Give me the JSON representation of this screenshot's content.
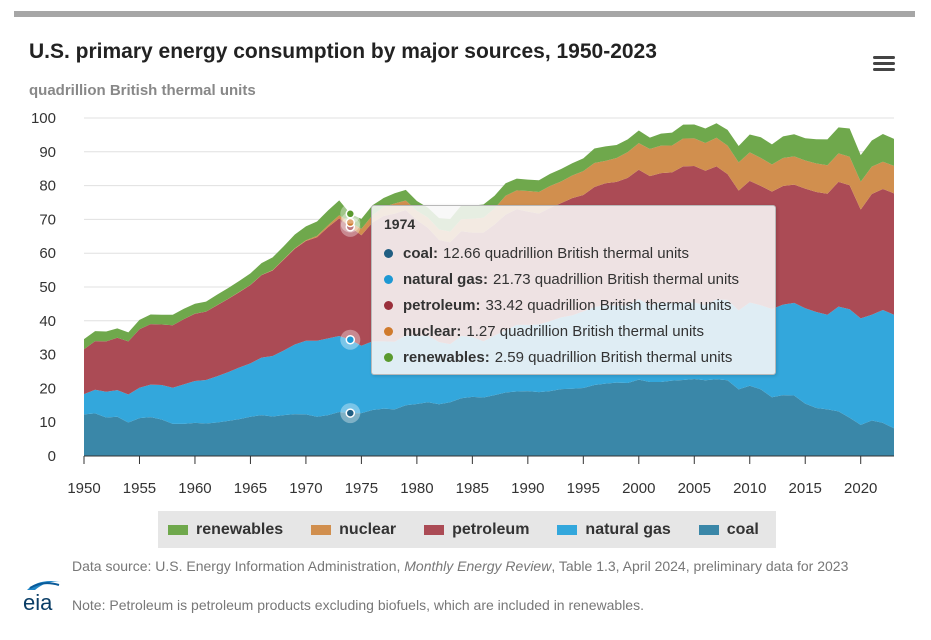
{
  "header": {
    "title": "U.S. primary energy consumption by major sources, 1950-2023",
    "subtitle": "quadrillion British thermal units"
  },
  "colors": {
    "coal": "#3a87a8",
    "natural_gas": "#33a7dc",
    "petroleum": "#ab4b55",
    "nuclear": "#d18f4e",
    "renewables": "#6fa84c",
    "tt_coal": "#205e82",
    "tt_natural_gas": "#1d98d3",
    "tt_petroleum": "#9a2f3b",
    "tt_nuclear": "#d07a2c",
    "tt_renewables": "#5a9a2e"
  },
  "chart_data": {
    "type": "area",
    "stacked": true,
    "xlim": [
      1950,
      2023
    ],
    "ylim": [
      0,
      100
    ],
    "x_ticks": [
      "1950",
      "1955",
      "1960",
      "1965",
      "1970",
      "1975",
      "1980",
      "1985",
      "1990",
      "1995",
      "2000",
      "2005",
      "2010",
      "2015",
      "2020"
    ],
    "y_ticks": [
      "0",
      "10",
      "20",
      "30",
      "40",
      "50",
      "60",
      "70",
      "80",
      "90",
      "100"
    ],
    "grid": "horizontal",
    "x": [
      1950,
      1951,
      1952,
      1953,
      1954,
      1955,
      1956,
      1957,
      1958,
      1959,
      1960,
      1961,
      1962,
      1963,
      1964,
      1965,
      1966,
      1967,
      1968,
      1969,
      1970,
      1971,
      1972,
      1973,
      1974,
      1975,
      1976,
      1977,
      1978,
      1979,
      1980,
      1981,
      1982,
      1983,
      1984,
      1985,
      1986,
      1987,
      1988,
      1989,
      1990,
      1991,
      1992,
      1993,
      1994,
      1995,
      1996,
      1997,
      1998,
      1999,
      2000,
      2001,
      2002,
      2003,
      2004,
      2005,
      2006,
      2007,
      2008,
      2009,
      2010,
      2011,
      2012,
      2013,
      2014,
      2015,
      2016,
      2017,
      2018,
      2019,
      2020,
      2021,
      2022,
      2023
    ],
    "series": [
      {
        "name": "coal",
        "values": [
          12.3,
          12.6,
          11.4,
          11.6,
          9.9,
          11.2,
          11.5,
          10.8,
          9.5,
          9.5,
          9.8,
          9.6,
          9.9,
          10.4,
          10.9,
          11.6,
          12.1,
          11.7,
          12.1,
          12.4,
          12.3,
          11.6,
          12.1,
          13.0,
          12.7,
          12.7,
          13.6,
          14.0,
          13.8,
          15.0,
          15.4,
          15.9,
          15.3,
          15.9,
          17.1,
          17.5,
          17.3,
          18.0,
          18.8,
          19.1,
          19.2,
          18.9,
          19.2,
          19.8,
          19.9,
          20.1,
          21.0,
          21.4,
          21.7,
          21.6,
          22.6,
          21.9,
          21.9,
          22.3,
          22.5,
          22.8,
          22.4,
          22.7,
          22.4,
          19.7,
          20.8,
          19.7,
          17.4,
          18.0,
          17.9,
          15.5,
          14.2,
          13.8,
          13.2,
          11.3,
          9.2,
          10.5,
          9.8,
          8.2
        ]
      },
      {
        "name": "natural gas",
        "values": [
          6.0,
          7.0,
          7.6,
          7.9,
          8.3,
          9.0,
          9.6,
          10.2,
          10.7,
          11.7,
          12.4,
          12.9,
          13.7,
          14.4,
          15.3,
          15.8,
          17.0,
          17.9,
          19.1,
          20.6,
          21.8,
          22.5,
          22.7,
          22.5,
          21.7,
          19.9,
          20.3,
          19.9,
          20.0,
          20.7,
          20.2,
          19.7,
          18.4,
          17.2,
          18.4,
          17.7,
          16.6,
          17.6,
          18.4,
          19.7,
          19.6,
          20.0,
          20.7,
          21.2,
          21.7,
          22.7,
          23.1,
          23.2,
          22.8,
          22.9,
          23.8,
          22.7,
          23.6,
          22.8,
          22.9,
          22.6,
          22.2,
          23.6,
          23.8,
          23.4,
          24.6,
          24.9,
          26.1,
          26.8,
          27.4,
          28.2,
          28.4,
          28.0,
          31.0,
          32.1,
          31.5,
          31.3,
          33.4,
          33.6
        ]
      },
      {
        "name": "petroleum",
        "values": [
          13.3,
          14.4,
          14.9,
          15.5,
          15.7,
          17.3,
          17.9,
          17.9,
          18.5,
          19.3,
          19.9,
          20.2,
          21.0,
          21.7,
          22.3,
          23.2,
          24.4,
          25.3,
          26.9,
          28.3,
          29.5,
          30.6,
          32.9,
          34.8,
          33.4,
          32.7,
          35.2,
          37.1,
          37.9,
          37.1,
          34.2,
          31.9,
          30.2,
          30.1,
          31.0,
          30.9,
          32.2,
          32.9,
          34.2,
          34.2,
          33.5,
          32.8,
          33.5,
          33.8,
          34.7,
          34.4,
          35.5,
          36.1,
          36.6,
          37.8,
          38.3,
          38.2,
          38.2,
          38.8,
          40.3,
          40.4,
          39.8,
          39.4,
          37.2,
          35.4,
          36.0,
          35.3,
          34.7,
          35.1,
          35.0,
          35.4,
          35.5,
          35.8,
          36.9,
          36.7,
          32.2,
          35.7,
          35.8,
          35.9
        ]
      },
      {
        "name": "nuclear",
        "values": [
          0,
          0,
          0,
          0,
          0,
          0,
          0,
          0,
          0,
          0,
          0.01,
          0.02,
          0.03,
          0.04,
          0.04,
          0.04,
          0.06,
          0.09,
          0.14,
          0.15,
          0.24,
          0.41,
          0.58,
          0.91,
          1.27,
          1.9,
          2.11,
          2.7,
          3.02,
          2.78,
          2.74,
          3.01,
          3.13,
          3.2,
          3.55,
          4.08,
          4.38,
          4.75,
          5.59,
          5.6,
          6.1,
          6.42,
          6.48,
          6.41,
          6.69,
          7.08,
          7.09,
          6.6,
          7.07,
          7.61,
          7.86,
          8.03,
          8.14,
          7.96,
          8.22,
          8.16,
          8.21,
          8.46,
          8.43,
          8.36,
          8.43,
          8.27,
          8.06,
          8.27,
          8.34,
          8.34,
          8.43,
          8.42,
          8.44,
          8.45,
          8.25,
          8.13,
          8.06,
          8.13
        ]
      },
      {
        "name": "renewables",
        "values": [
          2.98,
          2.96,
          2.94,
          2.77,
          2.69,
          2.78,
          2.85,
          2.88,
          3.1,
          3.06,
          2.93,
          2.95,
          3.13,
          3.16,
          3.27,
          3.4,
          3.49,
          3.77,
          3.83,
          4.08,
          4.08,
          4.28,
          4.38,
          4.41,
          2.59,
          2.94,
          2.97,
          2.62,
          3.0,
          3.14,
          2.89,
          2.95,
          3.36,
          3.72,
          4.07,
          3.91,
          3.92,
          3.76,
          3.69,
          3.48,
          3.38,
          3.45,
          3.58,
          3.71,
          3.62,
          3.76,
          4.28,
          4.31,
          3.85,
          3.75,
          3.76,
          3.37,
          3.53,
          3.81,
          4.12,
          4.13,
          4.3,
          4.28,
          4.64,
          4.85,
          5.3,
          6.13,
          5.92,
          6.4,
          6.54,
          6.55,
          7.2,
          7.64,
          7.68,
          8.36,
          7.85,
          7.7,
          8.21,
          8.01
        ]
      }
    ],
    "tooltip": {
      "year": "1974",
      "rows": [
        {
          "key": "coal",
          "name": "coal:",
          "value": "12.66 quadrillion British thermal units"
        },
        {
          "key": "natural_gas",
          "name": "natural gas:",
          "value": "21.73 quadrillion British thermal units"
        },
        {
          "key": "petroleum",
          "name": "petroleum:",
          "value": "33.42 quadrillion British thermal units"
        },
        {
          "key": "nuclear",
          "name": "nuclear:",
          "value": "1.27 quadrillion British thermal units"
        },
        {
          "key": "renewables",
          "name": "renewables:",
          "value": "2.59 quadrillion British thermal units"
        }
      ]
    }
  },
  "legend": {
    "items": [
      {
        "key": "renewables",
        "label": "renewables"
      },
      {
        "key": "nuclear",
        "label": "nuclear"
      },
      {
        "key": "petroleum",
        "label": "petroleum"
      },
      {
        "key": "natural_gas",
        "label": "natural gas"
      },
      {
        "key": "coal",
        "label": "coal"
      }
    ]
  },
  "footer": {
    "source_prefix": "Data source: U.S. Energy Information Administration, ",
    "source_title": "Monthly Energy Review",
    "source_suffix": ", Table 1.3, April 2024, preliminary data for 2023",
    "note": "Note: Petroleum is petroleum products excluding biofuels, which are included in renewables.",
    "logo_text": "eia"
  }
}
